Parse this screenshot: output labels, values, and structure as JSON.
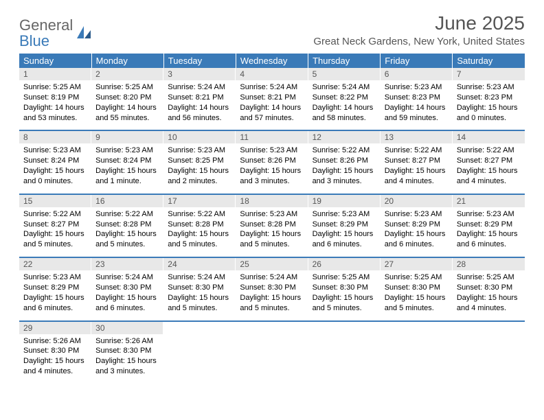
{
  "brand": {
    "part1": "General",
    "part2": "Blue"
  },
  "title": "June 2025",
  "location": "Great Neck Gardens, New York, United States",
  "colors": {
    "header_bg": "#3a7ab8",
    "header_text": "#ffffff",
    "daynum_bg": "#e8e8e8",
    "daynum_text": "#555555",
    "row_divider": "#3a7ab8",
    "body_text": "#000000",
    "title_text": "#555555",
    "logo_gray": "#666666",
    "logo_blue": "#3a7ab8",
    "page_bg": "#ffffff"
  },
  "typography": {
    "title_fontsize": 28,
    "location_fontsize": 15,
    "weekday_fontsize": 13,
    "daynum_fontsize": 12,
    "body_fontsize": 11,
    "logo_fontsize": 22
  },
  "weekdays": [
    "Sunday",
    "Monday",
    "Tuesday",
    "Wednesday",
    "Thursday",
    "Friday",
    "Saturday"
  ],
  "weeks": [
    [
      {
        "n": "1",
        "sr": "Sunrise: 5:25 AM",
        "ss": "Sunset: 8:19 PM",
        "d1": "Daylight: 14 hours",
        "d2": "and 53 minutes."
      },
      {
        "n": "2",
        "sr": "Sunrise: 5:25 AM",
        "ss": "Sunset: 8:20 PM",
        "d1": "Daylight: 14 hours",
        "d2": "and 55 minutes."
      },
      {
        "n": "3",
        "sr": "Sunrise: 5:24 AM",
        "ss": "Sunset: 8:21 PM",
        "d1": "Daylight: 14 hours",
        "d2": "and 56 minutes."
      },
      {
        "n": "4",
        "sr": "Sunrise: 5:24 AM",
        "ss": "Sunset: 8:21 PM",
        "d1": "Daylight: 14 hours",
        "d2": "and 57 minutes."
      },
      {
        "n": "5",
        "sr": "Sunrise: 5:24 AM",
        "ss": "Sunset: 8:22 PM",
        "d1": "Daylight: 14 hours",
        "d2": "and 58 minutes."
      },
      {
        "n": "6",
        "sr": "Sunrise: 5:23 AM",
        "ss": "Sunset: 8:23 PM",
        "d1": "Daylight: 14 hours",
        "d2": "and 59 minutes."
      },
      {
        "n": "7",
        "sr": "Sunrise: 5:23 AM",
        "ss": "Sunset: 8:23 PM",
        "d1": "Daylight: 15 hours",
        "d2": "and 0 minutes."
      }
    ],
    [
      {
        "n": "8",
        "sr": "Sunrise: 5:23 AM",
        "ss": "Sunset: 8:24 PM",
        "d1": "Daylight: 15 hours",
        "d2": "and 0 minutes."
      },
      {
        "n": "9",
        "sr": "Sunrise: 5:23 AM",
        "ss": "Sunset: 8:24 PM",
        "d1": "Daylight: 15 hours",
        "d2": "and 1 minute."
      },
      {
        "n": "10",
        "sr": "Sunrise: 5:23 AM",
        "ss": "Sunset: 8:25 PM",
        "d1": "Daylight: 15 hours",
        "d2": "and 2 minutes."
      },
      {
        "n": "11",
        "sr": "Sunrise: 5:23 AM",
        "ss": "Sunset: 8:26 PM",
        "d1": "Daylight: 15 hours",
        "d2": "and 3 minutes."
      },
      {
        "n": "12",
        "sr": "Sunrise: 5:22 AM",
        "ss": "Sunset: 8:26 PM",
        "d1": "Daylight: 15 hours",
        "d2": "and 3 minutes."
      },
      {
        "n": "13",
        "sr": "Sunrise: 5:22 AM",
        "ss": "Sunset: 8:27 PM",
        "d1": "Daylight: 15 hours",
        "d2": "and 4 minutes."
      },
      {
        "n": "14",
        "sr": "Sunrise: 5:22 AM",
        "ss": "Sunset: 8:27 PM",
        "d1": "Daylight: 15 hours",
        "d2": "and 4 minutes."
      }
    ],
    [
      {
        "n": "15",
        "sr": "Sunrise: 5:22 AM",
        "ss": "Sunset: 8:27 PM",
        "d1": "Daylight: 15 hours",
        "d2": "and 5 minutes."
      },
      {
        "n": "16",
        "sr": "Sunrise: 5:22 AM",
        "ss": "Sunset: 8:28 PM",
        "d1": "Daylight: 15 hours",
        "d2": "and 5 minutes."
      },
      {
        "n": "17",
        "sr": "Sunrise: 5:22 AM",
        "ss": "Sunset: 8:28 PM",
        "d1": "Daylight: 15 hours",
        "d2": "and 5 minutes."
      },
      {
        "n": "18",
        "sr": "Sunrise: 5:23 AM",
        "ss": "Sunset: 8:28 PM",
        "d1": "Daylight: 15 hours",
        "d2": "and 5 minutes."
      },
      {
        "n": "19",
        "sr": "Sunrise: 5:23 AM",
        "ss": "Sunset: 8:29 PM",
        "d1": "Daylight: 15 hours",
        "d2": "and 6 minutes."
      },
      {
        "n": "20",
        "sr": "Sunrise: 5:23 AM",
        "ss": "Sunset: 8:29 PM",
        "d1": "Daylight: 15 hours",
        "d2": "and 6 minutes."
      },
      {
        "n": "21",
        "sr": "Sunrise: 5:23 AM",
        "ss": "Sunset: 8:29 PM",
        "d1": "Daylight: 15 hours",
        "d2": "and 6 minutes."
      }
    ],
    [
      {
        "n": "22",
        "sr": "Sunrise: 5:23 AM",
        "ss": "Sunset: 8:29 PM",
        "d1": "Daylight: 15 hours",
        "d2": "and 6 minutes."
      },
      {
        "n": "23",
        "sr": "Sunrise: 5:24 AM",
        "ss": "Sunset: 8:30 PM",
        "d1": "Daylight: 15 hours",
        "d2": "and 6 minutes."
      },
      {
        "n": "24",
        "sr": "Sunrise: 5:24 AM",
        "ss": "Sunset: 8:30 PM",
        "d1": "Daylight: 15 hours",
        "d2": "and 5 minutes."
      },
      {
        "n": "25",
        "sr": "Sunrise: 5:24 AM",
        "ss": "Sunset: 8:30 PM",
        "d1": "Daylight: 15 hours",
        "d2": "and 5 minutes."
      },
      {
        "n": "26",
        "sr": "Sunrise: 5:25 AM",
        "ss": "Sunset: 8:30 PM",
        "d1": "Daylight: 15 hours",
        "d2": "and 5 minutes."
      },
      {
        "n": "27",
        "sr": "Sunrise: 5:25 AM",
        "ss": "Sunset: 8:30 PM",
        "d1": "Daylight: 15 hours",
        "d2": "and 5 minutes."
      },
      {
        "n": "28",
        "sr": "Sunrise: 5:25 AM",
        "ss": "Sunset: 8:30 PM",
        "d1": "Daylight: 15 hours",
        "d2": "and 4 minutes."
      }
    ],
    [
      {
        "n": "29",
        "sr": "Sunrise: 5:26 AM",
        "ss": "Sunset: 8:30 PM",
        "d1": "Daylight: 15 hours",
        "d2": "and 4 minutes."
      },
      {
        "n": "30",
        "sr": "Sunrise: 5:26 AM",
        "ss": "Sunset: 8:30 PM",
        "d1": "Daylight: 15 hours",
        "d2": "and 3 minutes."
      },
      null,
      null,
      null,
      null,
      null
    ]
  ]
}
